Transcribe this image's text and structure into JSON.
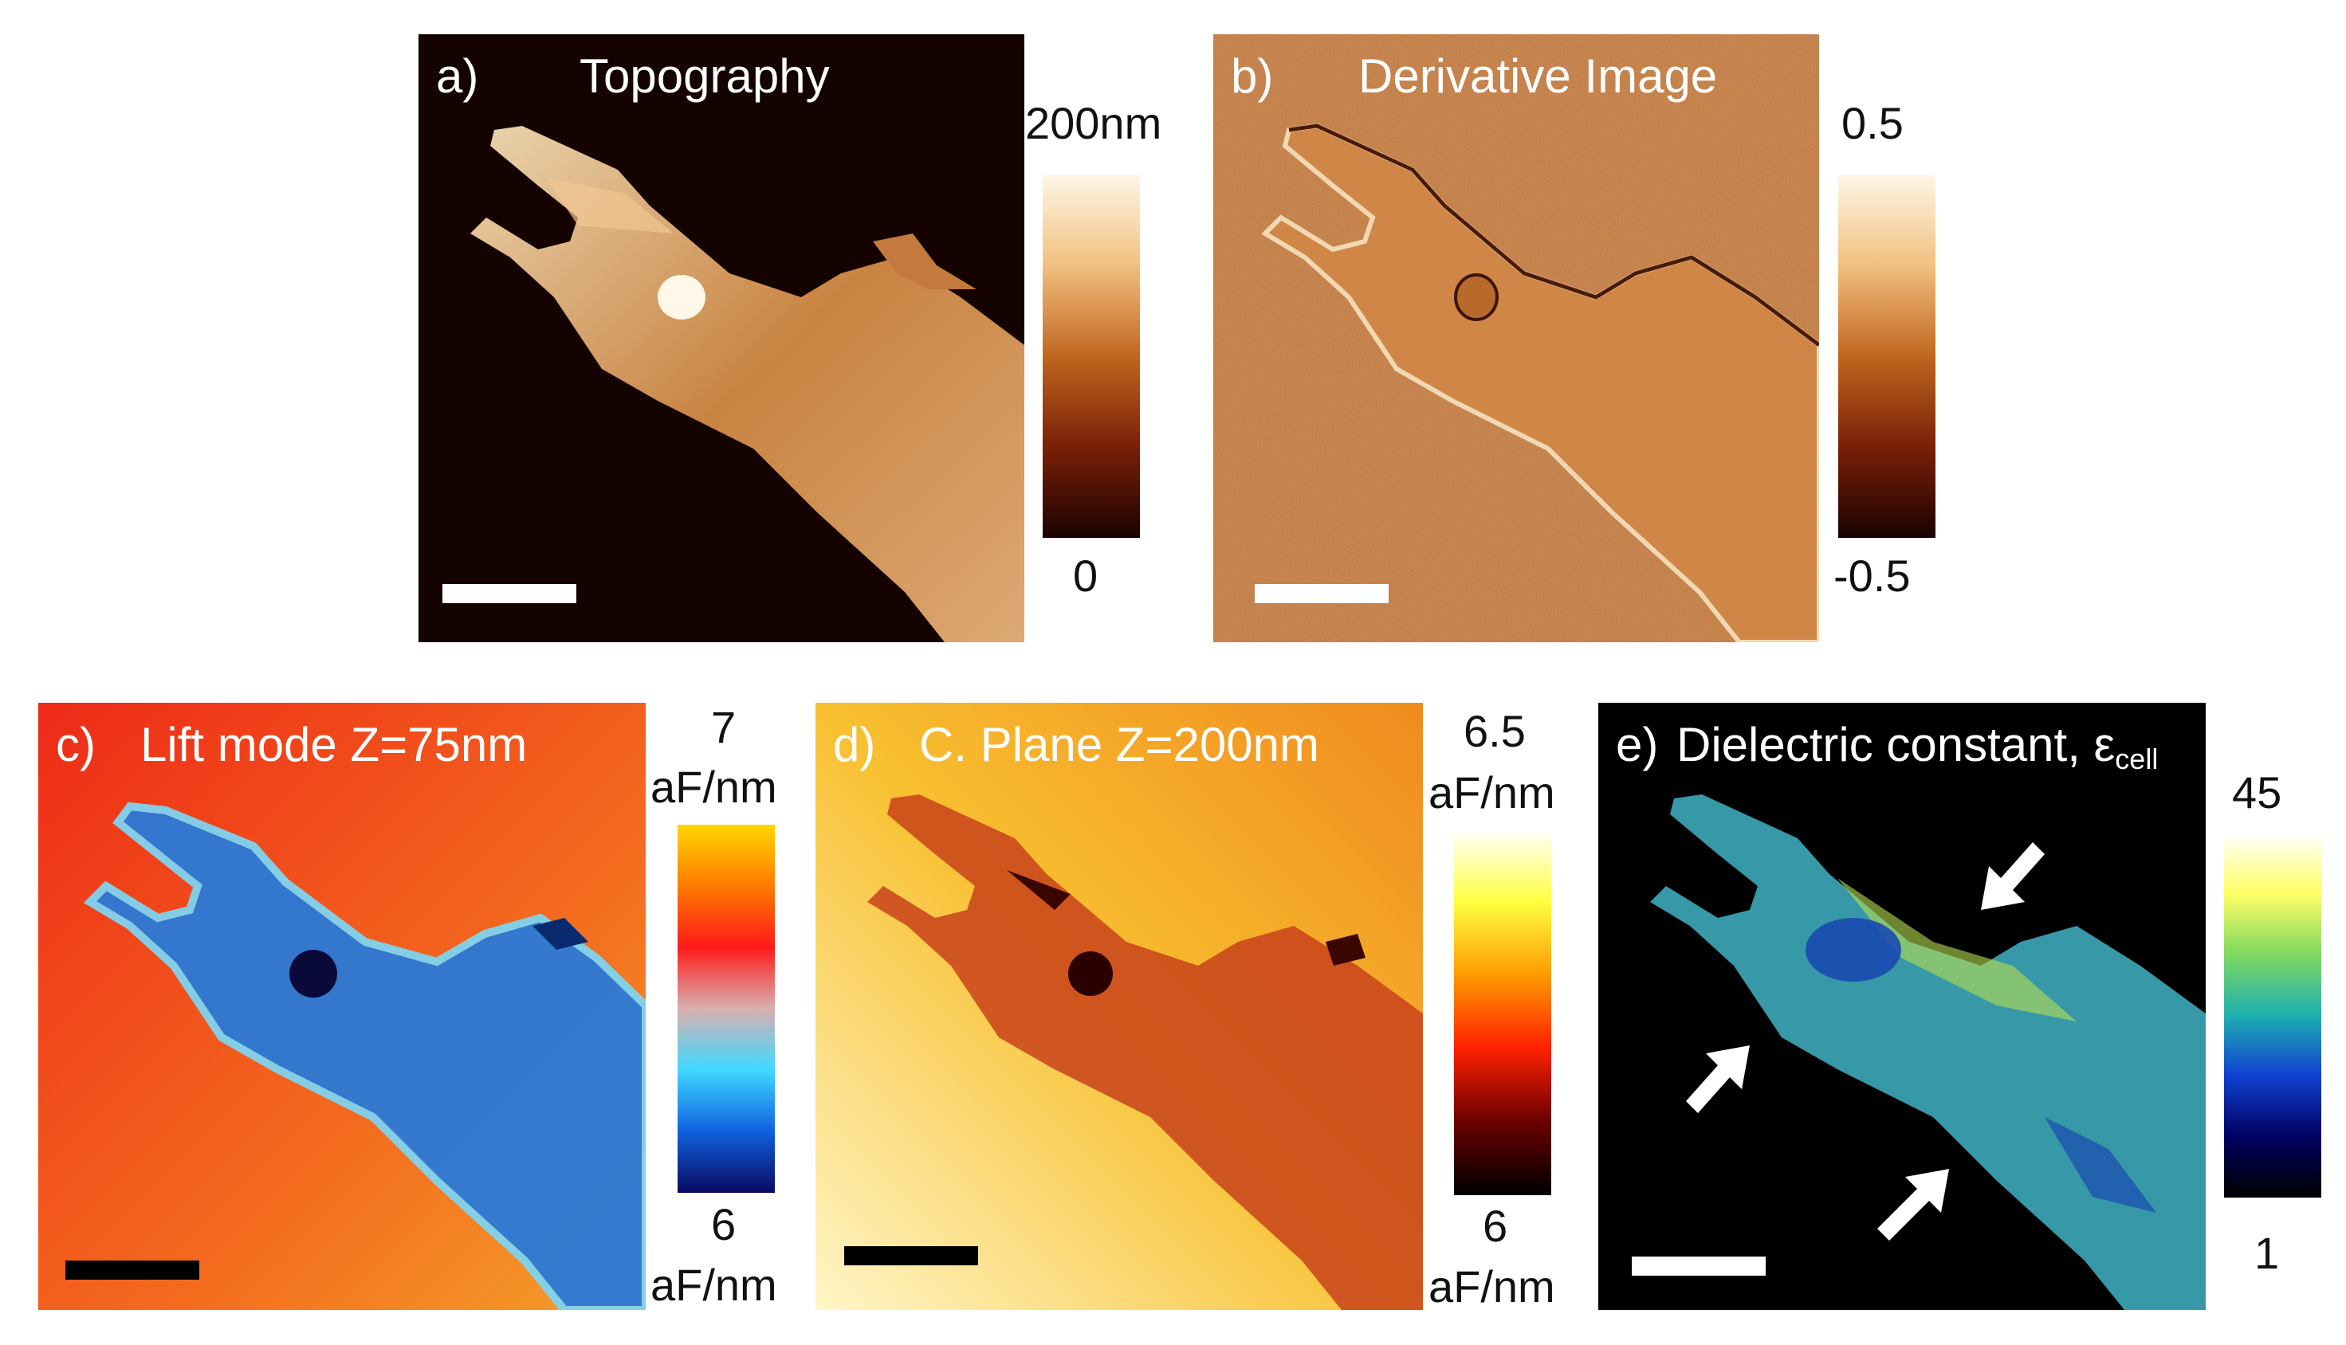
{
  "panels": {
    "a": {
      "label": "a)",
      "title": "Topography",
      "colorbar": {
        "max": "200nm",
        "min": "0",
        "stops": [
          "#fff6e6",
          "#f1c07e",
          "#c0661f",
          "#7a1f07",
          "#1a0200"
        ]
      }
    },
    "b": {
      "label": "b)",
      "title": "Derivative Image",
      "colorbar": {
        "max": "0.5",
        "min": "-0.5",
        "stops": [
          "#fff6e6",
          "#f1c07e",
          "#c0661f",
          "#7a1f07",
          "#1a0200"
        ]
      }
    },
    "c": {
      "label": "c)",
      "title": "Lift mode Z=75nm",
      "colorbar": {
        "max": "7",
        "max_unit": "aF/nm",
        "min": "6",
        "min_unit": "aF/nm",
        "stops": [
          "#ffd700",
          "#ff7a00",
          "#ff1a1a",
          "#d8b0b0",
          "#40d8ff",
          "#1060e0",
          "#0a0a60"
        ]
      }
    },
    "d": {
      "label": "d)",
      "title": "C. Plane Z=200nm",
      "colorbar": {
        "max": "6.5",
        "max_unit": "aF/nm",
        "min": "6",
        "min_unit": "aF/nm",
        "stops": [
          "#ffffff",
          "#ffff40",
          "#ff9a00",
          "#ff2000",
          "#6a0000",
          "#000000"
        ]
      }
    },
    "e": {
      "label": "e)",
      "title": "Dielectric constant, ε",
      "title_sub": "cell",
      "colorbar": {
        "max": "45",
        "min": "1",
        "stops": [
          "#ffffff",
          "#ffff66",
          "#7fd860",
          "#20b0b0",
          "#1040d0",
          "#000060",
          "#000000"
        ]
      }
    }
  },
  "colors": {
    "topo_bg": "#120200",
    "deriv_bg": "#c77837",
    "lift_bg": "#f0401c",
    "plane_bg": "#f6b42a",
    "diel_bg": "#000000",
    "scalebar_light": "#ffffff",
    "scalebar_dark": "#000000"
  }
}
